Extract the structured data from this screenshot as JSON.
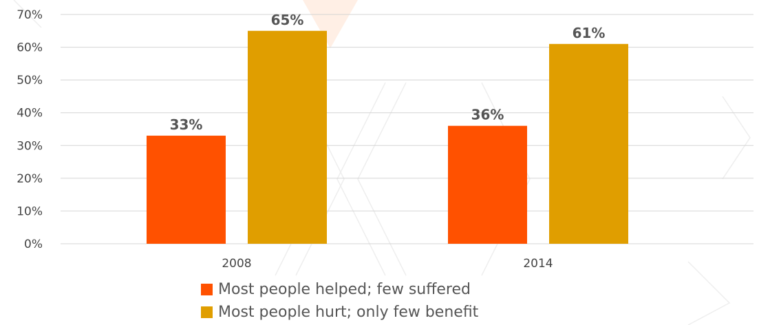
{
  "colors": {
    "helped": "#FF5100",
    "hurt": "#E09E00",
    "grid": "#d4d4d4",
    "text": "#444444"
  },
  "chart_data": {
    "type": "bar",
    "categories": [
      "2008",
      "2014"
    ],
    "series": [
      {
        "name": "Most people helped; few suffered",
        "values": [
          33,
          36
        ]
      },
      {
        "name": "Most people hurt; only few benefit",
        "values": [
          65,
          61
        ]
      }
    ],
    "value_labels": [
      [
        "33%",
        "36%"
      ],
      [
        "65%",
        "61%"
      ]
    ],
    "ylim": [
      0,
      70
    ],
    "yticks": [
      "0%",
      "10%",
      "20%",
      "30%",
      "40%",
      "50%",
      "60%",
      "70%"
    ],
    "grid": true,
    "legend_position": "bottom"
  }
}
